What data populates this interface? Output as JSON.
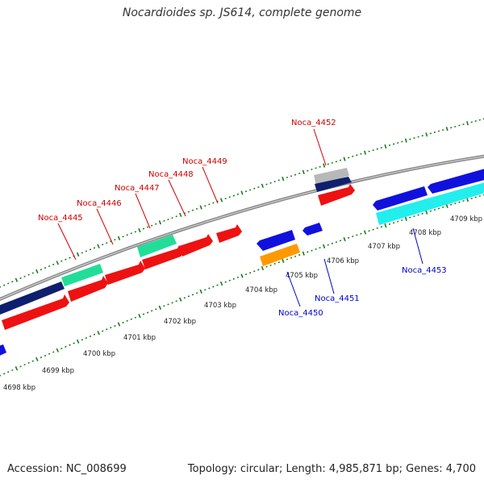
{
  "title": "Nocardioides sp. JS614, complete genome",
  "accession_text": "Accession: NC_008699",
  "summary_text": "Topology: circular; Length: 4,985,871 bp; Genes: 4,700",
  "colors": {
    "backbone": "#8c8c8c",
    "tick": "#1a7a1a",
    "label_top": "#cc0000",
    "label_bottom": "#0000cc"
  },
  "scale_labels": [
    "4698 kbp",
    "4699 kbp",
    "4700 kbp",
    "4701 kbp",
    "4702 kbp",
    "4703 kbp",
    "4704 kbp",
    "4705 kbp",
    "4706 kbp",
    "4707 kbp",
    "4708 kbp",
    "4709 kbp"
  ],
  "gene_labels_top": [
    "Noca_4445",
    "Noca_4446",
    "Noca_4447",
    "Noca_4448",
    "Noca_4449",
    "Noca_4452"
  ],
  "gene_labels_bottom": [
    "Noca_4450",
    "Noca_4451",
    "Noca_4453"
  ]
}
